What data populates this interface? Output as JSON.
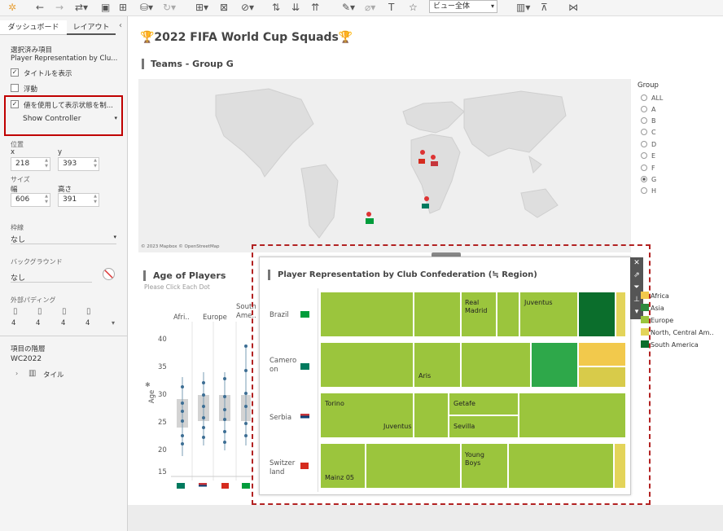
{
  "toolbar": {
    "view_select": "ビュー全体"
  },
  "side": {
    "tab_dashboard": "ダッシュボード",
    "tab_layout": "レイアウト",
    "selected_label": "選択済み項目",
    "selected_value": "Player Representation by Clu...",
    "show_title": "タイトルを表示",
    "floating": "浮動",
    "show_hide_value": "値を使用して表示状態を制...",
    "show_controller": "Show Controller",
    "position": "位置",
    "x_label": "x",
    "y_label": "y",
    "x": "218",
    "y": "393",
    "size": "サイズ",
    "w_label": "幅",
    "h_label": "高さ",
    "w": "606",
    "h": "391",
    "border": "枠線",
    "border_value": "なし",
    "background": "バックグラウンド",
    "background_value": "なし",
    "padding": "外部パディング",
    "pad": [
      "4",
      "4",
      "4",
      "4"
    ],
    "hierarchy": "項目の階層",
    "root": "WC2022",
    "tile": "タイル"
  },
  "dash": {
    "title": "🏆2022 FIFA World Cup Squads🏆",
    "teams_heading": "Teams  - Group  G",
    "map_attr": "© 2023 Mapbox © OpenStreetMap",
    "group_label": "Group",
    "groups": [
      "ALL",
      "A",
      "B",
      "C",
      "D",
      "E",
      "F",
      "G",
      "H"
    ],
    "age_title": "Age of Players",
    "age_sub": "Please Click Each Dot",
    "age_cols": [
      "Afri..",
      "Europe",
      "South Ame.."
    ],
    "age_axis": "Age",
    "age_ticks": [
      "40",
      "35",
      "30",
      "25",
      "20",
      "15"
    ],
    "tree_title": "Player Representation by Club Confederation (≒ Region)",
    "countries": [
      "Brazil",
      "Camero on",
      "Serbia",
      "Switzer land"
    ],
    "clubs": {
      "real": "Real Madrid",
      "juve": "Juventus",
      "aris": "Aris",
      "torino": "Torino",
      "getafe": "Getafe",
      "juve2": "Juventus",
      "sevilla": "Sevilla",
      "young": "Young Boys",
      "mainz": "Mainz 05"
    },
    "confs": [
      {
        "name": "Africa",
        "color": "#f2c94c"
      },
      {
        "name": "Asia",
        "color": "#2d8a3e"
      },
      {
        "name": "Europe",
        "color": "#9bc53d"
      },
      {
        "name": "North, Central Am..",
        "color": "#e3d45a"
      },
      {
        "name": "South America",
        "color": "#0b6e2c"
      }
    ]
  }
}
